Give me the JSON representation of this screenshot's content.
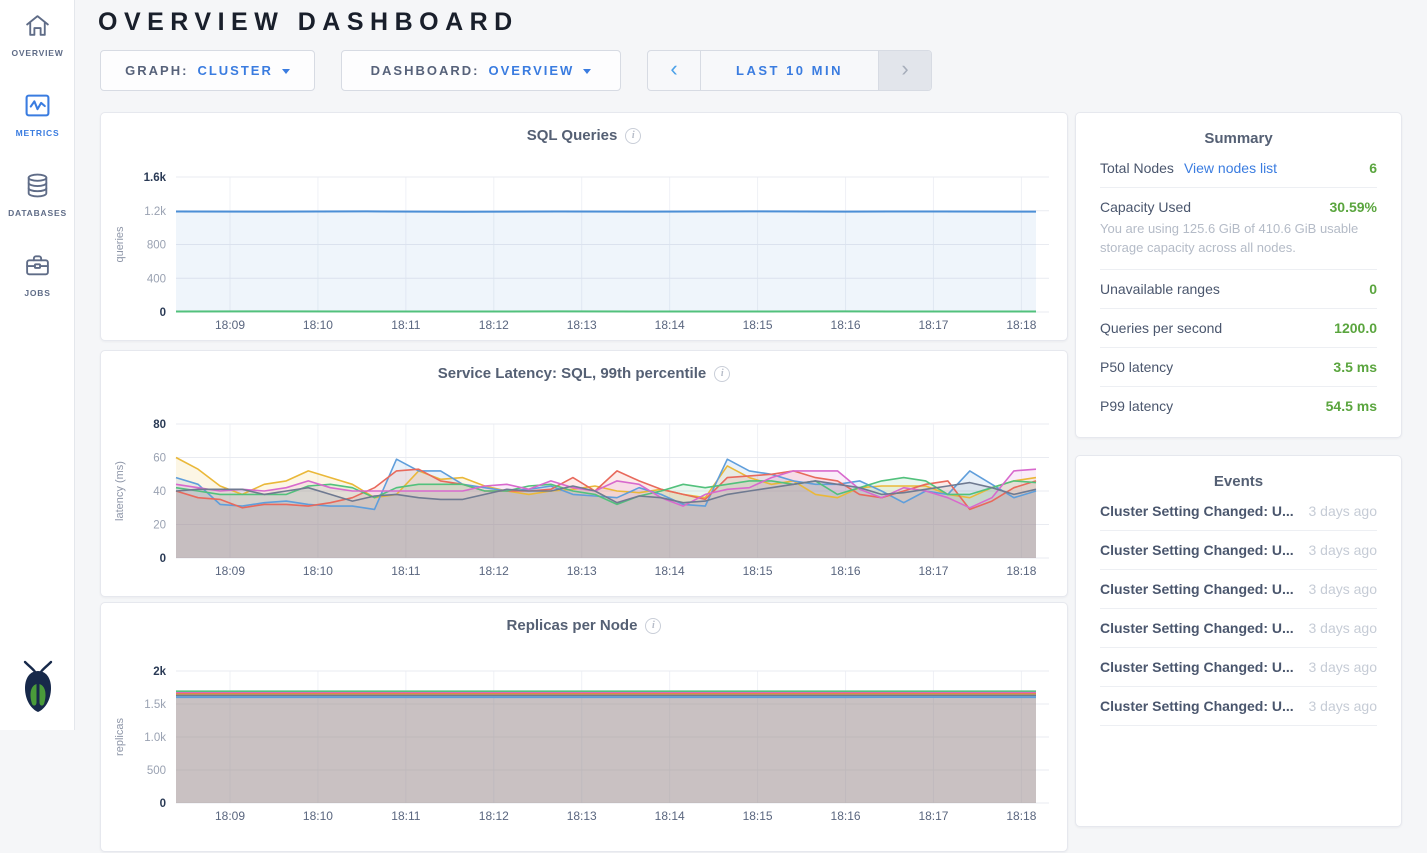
{
  "theme": {
    "link_blue": "#3a7ce0",
    "value_green": "#5aa53e",
    "active_nav": "#3a7ce0",
    "nav_gray": "#5f6c87"
  },
  "header": {
    "title": "OVERVIEW DASHBOARD"
  },
  "sidebar": {
    "items": [
      {
        "label": "OVERVIEW",
        "icon": "home-icon",
        "active": false
      },
      {
        "label": "METRICS",
        "icon": "metrics-icon",
        "active": true
      },
      {
        "label": "DATABASES",
        "icon": "database-icon",
        "active": false
      },
      {
        "label": "JOBS",
        "icon": "briefcase-icon",
        "active": false
      }
    ],
    "logo": "cockroachdb-logo"
  },
  "controls": {
    "graph_selector": {
      "label": "GRAPH:",
      "value": "CLUSTER"
    },
    "dashboard_selector": {
      "label": "DASHBOARD:",
      "value": "OVERVIEW"
    },
    "time_selector": {
      "prev_icon": "‹",
      "range_label": "LAST 10 MIN",
      "next_icon": "›",
      "next_disabled": true
    }
  },
  "summary": {
    "title": "Summary",
    "rows": [
      {
        "label": "Total Nodes",
        "link": "View nodes list",
        "value": "6"
      },
      {
        "label": "Capacity Used",
        "value": "30.59%",
        "subtext": "You are using 125.6 GiB of 410.6 GiB usable storage capacity across all nodes."
      },
      {
        "label": "Unavailable ranges",
        "value": "0"
      },
      {
        "label": "Queries per second",
        "value": "1200.0"
      },
      {
        "label": "P50 latency",
        "value": "3.5 ms"
      },
      {
        "label": "P99 latency",
        "value": "54.5 ms"
      }
    ]
  },
  "events": {
    "title": "Events",
    "items": [
      {
        "text": "Cluster Setting Changed: U...",
        "time": "3 days ago"
      },
      {
        "text": "Cluster Setting Changed: U...",
        "time": "3 days ago"
      },
      {
        "text": "Cluster Setting Changed: U...",
        "time": "3 days ago"
      },
      {
        "text": "Cluster Setting Changed: U...",
        "time": "3 days ago"
      },
      {
        "text": "Cluster Setting Changed: U...",
        "time": "3 days ago"
      },
      {
        "text": "Cluster Setting Changed: U...",
        "time": "3 days ago"
      }
    ]
  },
  "chart_data": [
    {
      "id": "sql-queries",
      "type": "line",
      "title": "SQL Queries",
      "ylabel": "queries",
      "ylim": [
        0,
        1600
      ],
      "yticks": [
        {
          "v": 0,
          "label": "0"
        },
        {
          "v": 400,
          "label": "400"
        },
        {
          "v": 800,
          "label": "800"
        },
        {
          "v": 1200,
          "label": "1.2k"
        },
        {
          "v": 1600,
          "label": "1.6k"
        }
      ],
      "x_ticks": [
        "18:09",
        "18:10",
        "18:11",
        "18:12",
        "18:13",
        "18:14",
        "18:15",
        "18:16",
        "18:17",
        "18:18"
      ],
      "x_range": "last 10 min (≈18:08.4–18:18.2)",
      "grid": true,
      "legend": "none",
      "fill_opacity": 0.09,
      "line_width": 2,
      "series": [
        {
          "name": "series-blue",
          "color": "#4c8fd6",
          "values": [
            1191,
            1190,
            1192,
            1189,
            1191,
            1190,
            1192,
            1190,
            1191,
            1190
          ]
        },
        {
          "name": "series-green",
          "color": "#52c17c",
          "values": [
            6,
            7,
            6,
            6,
            7,
            6,
            6,
            7,
            6,
            6
          ]
        }
      ]
    },
    {
      "id": "service-latency-p99",
      "type": "line",
      "title": "Service Latency: SQL, 99th percentile",
      "ylabel": "latency (ms)",
      "ylim": [
        0,
        80
      ],
      "yticks": [
        {
          "v": 0,
          "label": "0"
        },
        {
          "v": 20,
          "label": "20"
        },
        {
          "v": 40,
          "label": "40"
        },
        {
          "v": 60,
          "label": "60"
        },
        {
          "v": 80,
          "label": "80"
        }
      ],
      "x_ticks": [
        "18:09",
        "18:10",
        "18:11",
        "18:12",
        "18:13",
        "18:14",
        "18:15",
        "18:16",
        "18:17",
        "18:18"
      ],
      "x_range": "last 10 min (≈18:08.4–18:18.2)",
      "grid": true,
      "legend": "none",
      "fill_opacity": 0.13,
      "line_width": 1.6,
      "series": [
        {
          "name": "series-yellow",
          "color": "#eab839",
          "values": [
            60,
            53,
            43,
            38,
            44,
            46,
            52,
            48,
            44,
            36,
            38,
            52,
            47,
            48,
            43,
            40,
            38,
            40,
            41,
            43,
            40,
            39,
            41,
            38,
            36,
            55,
            48,
            44,
            46,
            38,
            36,
            42,
            43,
            43,
            43,
            38,
            36,
            42,
            46,
            48
          ]
        },
        {
          "name": "series-blue",
          "color": "#5f9edb",
          "values": [
            48,
            44,
            32,
            31,
            33,
            34,
            32,
            31,
            31,
            29,
            59,
            52,
            52,
            44,
            42,
            40,
            41,
            43,
            38,
            37,
            36,
            42,
            38,
            32,
            31,
            59,
            52,
            50,
            46,
            44,
            44,
            46,
            40,
            33,
            40,
            38,
            52,
            44,
            36,
            40
          ]
        },
        {
          "name": "series-red",
          "color": "#e8695c",
          "values": [
            40,
            36,
            35,
            30,
            32,
            32,
            31,
            33,
            36,
            42,
            52,
            53,
            46,
            44,
            40,
            40,
            40,
            41,
            48,
            40,
            52,
            46,
            41,
            38,
            35,
            48,
            49,
            50,
            52,
            48,
            46,
            38,
            36,
            40,
            44,
            46,
            29,
            34,
            42,
            46
          ]
        },
        {
          "name": "series-green",
          "color": "#52c17c",
          "values": [
            42,
            40,
            38,
            38,
            38,
            38,
            43,
            44,
            42,
            36,
            42,
            44,
            44,
            44,
            40,
            40,
            43,
            44,
            40,
            38,
            32,
            37,
            40,
            44,
            42,
            44,
            46,
            46,
            44,
            46,
            38,
            42,
            46,
            48,
            46,
            38,
            38,
            42,
            46,
            45
          ]
        },
        {
          "name": "series-magenta",
          "color": "#d869cd",
          "values": [
            44,
            42,
            40,
            41,
            40,
            42,
            46,
            42,
            40,
            40,
            40,
            40,
            40,
            40,
            43,
            44,
            41,
            46,
            42,
            40,
            46,
            44,
            36,
            31,
            38,
            41,
            42,
            48,
            52,
            52,
            52,
            41,
            36,
            42,
            40,
            36,
            30,
            36,
            52,
            53
          ]
        },
        {
          "name": "series-gray",
          "color": "#6f7a91",
          "values": [
            40,
            41,
            41,
            41,
            38,
            40,
            42,
            38,
            34,
            37,
            38,
            36,
            35,
            35,
            38,
            41,
            40,
            40,
            43,
            40,
            33,
            37,
            36,
            33,
            34,
            38,
            40,
            42,
            44,
            46,
            44,
            42,
            38,
            39,
            41,
            43,
            45,
            42,
            38,
            41
          ]
        }
      ]
    },
    {
      "id": "replicas-per-node",
      "type": "line",
      "title": "Replicas per Node",
      "ylabel": "replicas",
      "ylim": [
        0,
        2000
      ],
      "yticks": [
        {
          "v": 0,
          "label": "0"
        },
        {
          "v": 500,
          "label": "500"
        },
        {
          "v": 1000,
          "label": "1.0k"
        },
        {
          "v": 1500,
          "label": "1.5k"
        },
        {
          "v": 2000,
          "label": "2k"
        }
      ],
      "x_ticks": [
        "18:09",
        "18:10",
        "18:11",
        "18:12",
        "18:13",
        "18:14",
        "18:15",
        "18:16",
        "18:17",
        "18:18"
      ],
      "x_range": "last 10 min (≈18:08.4–18:18.2)",
      "grid": true,
      "legend": "none",
      "fill_opacity": 0.12,
      "line_width": 1.8,
      "series": [
        {
          "name": "series-green",
          "color": "#52c17c",
          "values": [
            1692,
            1692,
            1692,
            1692,
            1692,
            1692,
            1692,
            1692,
            1692,
            1692
          ]
        },
        {
          "name": "series-magenta",
          "color": "#d869cd",
          "values": [
            1668,
            1668,
            1668,
            1668,
            1668,
            1668,
            1668,
            1668,
            1668,
            1670
          ]
        },
        {
          "name": "series-red",
          "color": "#e8695c",
          "values": [
            1655,
            1655,
            1657,
            1655,
            1655,
            1655,
            1655,
            1657,
            1655,
            1655
          ]
        },
        {
          "name": "series-yellow",
          "color": "#eab839",
          "values": [
            1642,
            1642,
            1642,
            1642,
            1642,
            1642,
            1642,
            1642,
            1642,
            1642
          ]
        },
        {
          "name": "series-gray",
          "color": "#6f7a91",
          "values": [
            1630,
            1630,
            1630,
            1630,
            1630,
            1630,
            1630,
            1630,
            1630,
            1630
          ]
        },
        {
          "name": "series-blue",
          "color": "#5f9edb",
          "values": [
            1603,
            1603,
            1603,
            1603,
            1603,
            1603,
            1603,
            1603,
            1605,
            1603
          ]
        }
      ]
    }
  ]
}
